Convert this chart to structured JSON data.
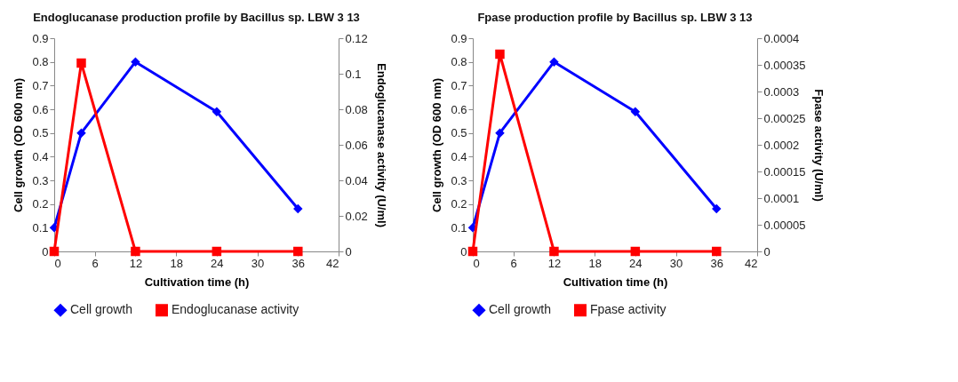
{
  "chart_data": [
    {
      "type": "line",
      "title": "Endoglucanase production profile by Bacillus sp. LBW 3 13",
      "xlabel": "Cultivation time (h)",
      "ylabel": "Cell growth (OD 600 nm)",
      "y2label": "Endoglucanase activity (U/ml)",
      "x": [
        0,
        4,
        12,
        24,
        36
      ],
      "xlim": [
        0,
        42
      ],
      "xticks": [
        0,
        6,
        12,
        18,
        24,
        30,
        36,
        42
      ],
      "ylim": [
        0,
        0.9
      ],
      "yticks": [
        0,
        0.1,
        0.2,
        0.3,
        0.4,
        0.5,
        0.6,
        0.7,
        0.8,
        0.9
      ],
      "y2lim": [
        0,
        0.12
      ],
      "y2ticks": [
        0,
        0.02,
        0.04,
        0.06,
        0.08,
        0.1,
        0.12
      ],
      "legend": "bottom",
      "series": [
        {
          "name": "Cell growth",
          "color": "#0000ff",
          "marker": "diamond",
          "values": [
            0.1,
            0.5,
            0.8,
            0.59,
            0.18
          ]
        },
        {
          "name": "Endoglucanase activity",
          "color": "#ff0000",
          "marker": "square",
          "axis": "y2",
          "values": [
            0,
            0.106,
            0,
            0,
            0
          ]
        }
      ]
    },
    {
      "type": "line",
      "title": "Fpase production profile by Bacillus sp. LBW 3 13",
      "xlabel": "Cultivation time (h)",
      "ylabel": "Cell growth (OD 600 nm)",
      "y2label": "Fpase activity (U/ml)",
      "x": [
        0,
        4,
        12,
        24,
        36
      ],
      "xlim": [
        0,
        42
      ],
      "xticks": [
        0,
        6,
        12,
        18,
        24,
        30,
        36,
        42
      ],
      "ylim": [
        0,
        0.9
      ],
      "yticks": [
        0,
        0.1,
        0.2,
        0.3,
        0.4,
        0.5,
        0.6,
        0.7,
        0.8,
        0.9
      ],
      "y2lim": [
        0,
        0.0004
      ],
      "y2ticks": [
        0,
        {
          "value": 5e-05,
          "label": "0.00005"
        },
        0.0001,
        0.00015,
        0.0002,
        0.00025,
        0.0003,
        0.00035,
        0.0004
      ],
      "legend": "bottom",
      "series": [
        {
          "name": "Cell growth",
          "color": "#0000ff",
          "marker": "diamond",
          "values": [
            0.1,
            0.5,
            0.8,
            0.59,
            0.18
          ]
        },
        {
          "name": "Fpase activity",
          "color": "#ff0000",
          "marker": "square",
          "axis": "y2",
          "values": [
            0,
            0.00037,
            0,
            0,
            0
          ]
        }
      ]
    }
  ]
}
